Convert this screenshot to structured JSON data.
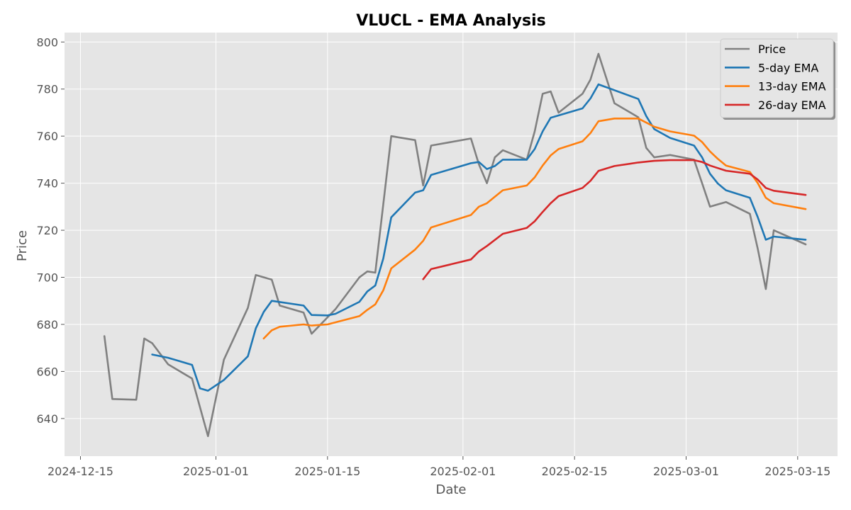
{
  "chart_data": {
    "type": "line",
    "title": "VLUCL - EMA Analysis",
    "xlabel": "Date",
    "ylabel": "Price",
    "xlim": [
      "2024-12-13",
      "2025-03-20"
    ],
    "ylim": [
      624,
      804
    ],
    "x_ticks": [
      "2024-12-15",
      "2025-01-01",
      "2025-01-15",
      "2025-02-01",
      "2025-02-15",
      "2025-03-01",
      "2025-03-15"
    ],
    "y_ticks": [
      640,
      660,
      680,
      700,
      720,
      740,
      760,
      780,
      800
    ],
    "grid": true,
    "legend_position": "top-right",
    "colors": {
      "plot_background": "#e5e5e5",
      "grid": "#ffffff",
      "text": "#555555"
    },
    "series": [
      {
        "name": "Price",
        "color": "#808080",
        "points": [
          [
            "2024-12-18",
            675
          ],
          [
            "2024-12-19",
            648.3
          ],
          [
            "2024-12-22",
            648
          ],
          [
            "2024-12-23",
            674
          ],
          [
            "2024-12-24",
            672
          ],
          [
            "2024-12-26",
            663
          ],
          [
            "2024-12-29",
            657
          ],
          [
            "2024-12-31",
            632.5
          ],
          [
            "2025-01-02",
            665
          ],
          [
            "2025-01-05",
            687
          ],
          [
            "2025-01-06",
            701
          ],
          [
            "2025-01-07",
            700
          ],
          [
            "2025-01-08",
            699
          ],
          [
            "2025-01-09",
            688
          ],
          [
            "2025-01-12",
            685
          ],
          [
            "2025-01-13",
            676
          ],
          [
            "2025-01-16",
            686.5
          ],
          [
            "2025-01-19",
            700
          ],
          [
            "2025-01-20",
            702.5
          ],
          [
            "2025-01-21",
            702
          ],
          [
            "2025-01-23",
            760
          ],
          [
            "2025-01-26",
            758.3
          ],
          [
            "2025-01-27",
            739
          ],
          [
            "2025-01-28",
            756
          ],
          [
            "2025-02-02",
            759
          ],
          [
            "2025-02-03",
            748
          ],
          [
            "2025-02-04",
            740
          ],
          [
            "2025-02-05",
            751
          ],
          [
            "2025-02-06",
            754
          ],
          [
            "2025-02-09",
            750
          ],
          [
            "2025-02-10",
            762
          ],
          [
            "2025-02-11",
            778
          ],
          [
            "2025-02-12",
            779
          ],
          [
            "2025-02-13",
            770
          ],
          [
            "2025-02-16",
            778
          ],
          [
            "2025-02-17",
            784
          ],
          [
            "2025-02-18",
            795
          ],
          [
            "2025-02-20",
            774
          ],
          [
            "2025-02-23",
            768
          ],
          [
            "2025-02-24",
            755
          ],
          [
            "2025-02-25",
            751
          ],
          [
            "2025-02-27",
            752
          ],
          [
            "2025-03-02",
            750
          ],
          [
            "2025-03-03",
            740
          ],
          [
            "2025-03-04",
            730
          ],
          [
            "2025-03-06",
            732
          ],
          [
            "2025-03-09",
            727
          ],
          [
            "2025-03-10",
            712
          ],
          [
            "2025-03-11",
            695
          ],
          [
            "2025-03-12",
            720
          ],
          [
            "2025-03-16",
            714
          ]
        ]
      },
      {
        "name": "5-day EMA",
        "color": "#1f77b4",
        "points": [
          [
            "2024-12-24",
            667.2
          ],
          [
            "2024-12-26",
            665.8
          ],
          [
            "2024-12-29",
            662.8
          ],
          [
            "2024-12-30",
            652.8
          ],
          [
            "2024-12-31",
            651.8
          ],
          [
            "2025-01-02",
            656.4
          ],
          [
            "2025-01-05",
            666.4
          ],
          [
            "2025-01-06",
            678.3
          ],
          [
            "2025-01-07",
            685.3
          ],
          [
            "2025-01-08",
            690
          ],
          [
            "2025-01-12",
            688
          ],
          [
            "2025-01-13",
            684
          ],
          [
            "2025-01-15",
            683.8
          ],
          [
            "2025-01-16",
            684.5
          ],
          [
            "2025-01-19",
            689.6
          ],
          [
            "2025-01-20",
            694
          ],
          [
            "2025-01-21",
            696.5
          ],
          [
            "2025-01-22",
            708
          ],
          [
            "2025-01-23",
            725.5
          ],
          [
            "2025-01-26",
            736
          ],
          [
            "2025-01-27",
            737
          ],
          [
            "2025-01-28",
            743.5
          ],
          [
            "2025-02-02",
            748.5
          ],
          [
            "2025-02-03",
            749
          ],
          [
            "2025-02-04",
            746
          ],
          [
            "2025-02-05",
            747.3
          ],
          [
            "2025-02-06",
            750
          ],
          [
            "2025-02-09",
            750
          ],
          [
            "2025-02-10",
            754.5
          ],
          [
            "2025-02-11",
            762
          ],
          [
            "2025-02-12",
            767.8
          ],
          [
            "2025-02-16",
            771.8
          ],
          [
            "2025-02-17",
            776
          ],
          [
            "2025-02-18",
            782
          ],
          [
            "2025-02-23",
            775.8
          ],
          [
            "2025-02-24",
            768.5
          ],
          [
            "2025-02-25",
            763
          ],
          [
            "2025-02-27",
            759.2
          ],
          [
            "2025-03-02",
            756
          ],
          [
            "2025-03-03",
            751
          ],
          [
            "2025-03-04",
            744
          ],
          [
            "2025-03-05",
            739.8
          ],
          [
            "2025-03-06",
            737
          ],
          [
            "2025-03-09",
            733.8
          ],
          [
            "2025-03-10",
            725.5
          ],
          [
            "2025-03-11",
            716
          ],
          [
            "2025-03-12",
            717.3
          ],
          [
            "2025-03-16",
            716
          ]
        ]
      },
      {
        "name": "13-day EMA",
        "color": "#ff7f0e",
        "points": [
          [
            "2025-01-07",
            674
          ],
          [
            "2025-01-08",
            677.5
          ],
          [
            "2025-01-09",
            679
          ],
          [
            "2025-01-12",
            680
          ],
          [
            "2025-01-13",
            679.5
          ],
          [
            "2025-01-15",
            680
          ],
          [
            "2025-01-19",
            683.5
          ],
          [
            "2025-01-20",
            686.2
          ],
          [
            "2025-01-21",
            688.5
          ],
          [
            "2025-01-22",
            694.5
          ],
          [
            "2025-01-23",
            703.8
          ],
          [
            "2025-01-26",
            711.8
          ],
          [
            "2025-01-27",
            715.5
          ],
          [
            "2025-01-28",
            721.2
          ],
          [
            "2025-02-02",
            726.5
          ],
          [
            "2025-02-03",
            730
          ],
          [
            "2025-02-04",
            731.5
          ],
          [
            "2025-02-06",
            737
          ],
          [
            "2025-02-09",
            739
          ],
          [
            "2025-02-10",
            742.5
          ],
          [
            "2025-02-11",
            747.5
          ],
          [
            "2025-02-12",
            751.8
          ],
          [
            "2025-02-13",
            754.5
          ],
          [
            "2025-02-16",
            757.8
          ],
          [
            "2025-02-17",
            761.3
          ],
          [
            "2025-02-18",
            766.3
          ],
          [
            "2025-02-20",
            767.5
          ],
          [
            "2025-02-23",
            767.5
          ],
          [
            "2025-02-25",
            764
          ],
          [
            "2025-02-27",
            762
          ],
          [
            "2025-03-02",
            760.2
          ],
          [
            "2025-03-03",
            757.5
          ],
          [
            "2025-03-04",
            753.5
          ],
          [
            "2025-03-05",
            750.3
          ],
          [
            "2025-03-06",
            747.5
          ],
          [
            "2025-03-09",
            744.8
          ],
          [
            "2025-03-10",
            740
          ],
          [
            "2025-03-11",
            733.8
          ],
          [
            "2025-03-12",
            731.5
          ],
          [
            "2025-03-16",
            729
          ]
        ]
      },
      {
        "name": "26-day EMA",
        "color": "#d62728",
        "points": [
          [
            "2025-01-27",
            699.2
          ],
          [
            "2025-01-28",
            703.5
          ],
          [
            "2025-02-02",
            707.6
          ],
          [
            "2025-02-03",
            711
          ],
          [
            "2025-02-04",
            713.3
          ],
          [
            "2025-02-06",
            718.5
          ],
          [
            "2025-02-09",
            721
          ],
          [
            "2025-02-10",
            723.8
          ],
          [
            "2025-02-11",
            727.8
          ],
          [
            "2025-02-12",
            731.5
          ],
          [
            "2025-02-13",
            734.5
          ],
          [
            "2025-02-16",
            738
          ],
          [
            "2025-02-17",
            741
          ],
          [
            "2025-02-18",
            745.2
          ],
          [
            "2025-02-20",
            747.3
          ],
          [
            "2025-02-23",
            748.8
          ],
          [
            "2025-02-25",
            749.5
          ],
          [
            "2025-02-27",
            749.8
          ],
          [
            "2025-03-02",
            749.8
          ],
          [
            "2025-03-03",
            749
          ],
          [
            "2025-03-04",
            747.5
          ],
          [
            "2025-03-06",
            745.3
          ],
          [
            "2025-03-09",
            744
          ],
          [
            "2025-03-10",
            741.5
          ],
          [
            "2025-03-11",
            738
          ],
          [
            "2025-03-12",
            736.8
          ],
          [
            "2025-03-16",
            735
          ]
        ]
      }
    ]
  }
}
